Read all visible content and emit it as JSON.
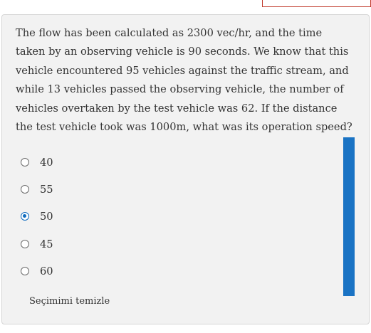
{
  "question": {
    "lines": [
      "The flow has been calculated as 2300 vec/hr, and the time",
      "taken by an observing vehicle is 90 seconds. We know that this",
      "vehicle encountered 95 vehicles against the traffic stream, and",
      "while 13 vehicles passed the observing vehicle, the number of",
      "vehicles overtaken by the test vehicle was 62. If the distance",
      "the test vehicle took was 1000m, what was its operation speed?"
    ]
  },
  "options": [
    {
      "label": "40",
      "selected": false
    },
    {
      "label": "55",
      "selected": false
    },
    {
      "label": "50",
      "selected": true
    },
    {
      "label": "45",
      "selected": false
    },
    {
      "label": "60",
      "selected": false
    }
  ],
  "clear_choice_label": "Seçimimi temizle",
  "colors": {
    "accent": "#0f6cbf",
    "side_bar": "#1a73c4",
    "card_background": "#f2f2f2",
    "top_tab_border": "#c0392b"
  }
}
